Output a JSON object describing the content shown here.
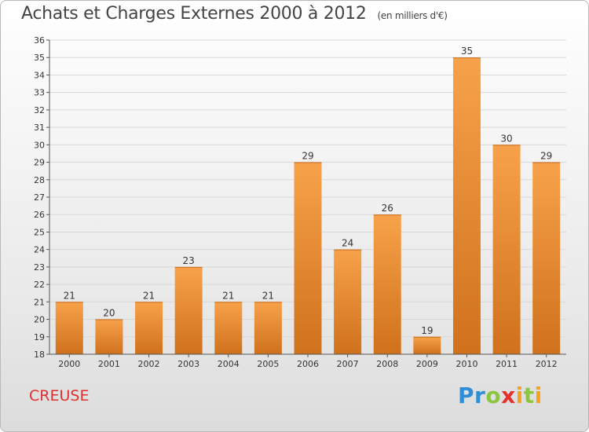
{
  "header": {
    "title": "Achats et Charges Externes 2000 à 2012",
    "unit": "(en milliers d'€)"
  },
  "region": "CREUSE",
  "logo": {
    "text": "Proxiti",
    "letters": [
      {
        "ch": "P",
        "color": "#2e8ed6"
      },
      {
        "ch": "r",
        "color": "#2e8ed6"
      },
      {
        "ch": "o",
        "color": "#8cc63f"
      },
      {
        "ch": "x",
        "color": "#e4322b"
      },
      {
        "ch": "i",
        "color": "#f6a21c"
      },
      {
        "ch": "t",
        "color": "#8cc63f"
      },
      {
        "ch": "i",
        "color": "#f6a21c"
      }
    ]
  },
  "colors": {
    "bar_top": "#f7a24a",
    "bar_bottom": "#d0711c",
    "region": "#e0302e"
  },
  "chart_data": {
    "type": "bar",
    "title": "Achats et Charges Externes 2000 à 2012",
    "categories": [
      "2000",
      "2001",
      "2002",
      "2003",
      "2004",
      "2005",
      "2006",
      "2007",
      "2008",
      "2009",
      "2010",
      "2011",
      "2012"
    ],
    "values": [
      21,
      20,
      21,
      23,
      21,
      21,
      29,
      24,
      26,
      19,
      35,
      30,
      29
    ],
    "ylim": [
      18,
      36
    ],
    "yticks": [
      18,
      19,
      20,
      21,
      22,
      23,
      24,
      25,
      26,
      27,
      28,
      29,
      30,
      31,
      32,
      33,
      34,
      35,
      36
    ],
    "grid": true
  }
}
